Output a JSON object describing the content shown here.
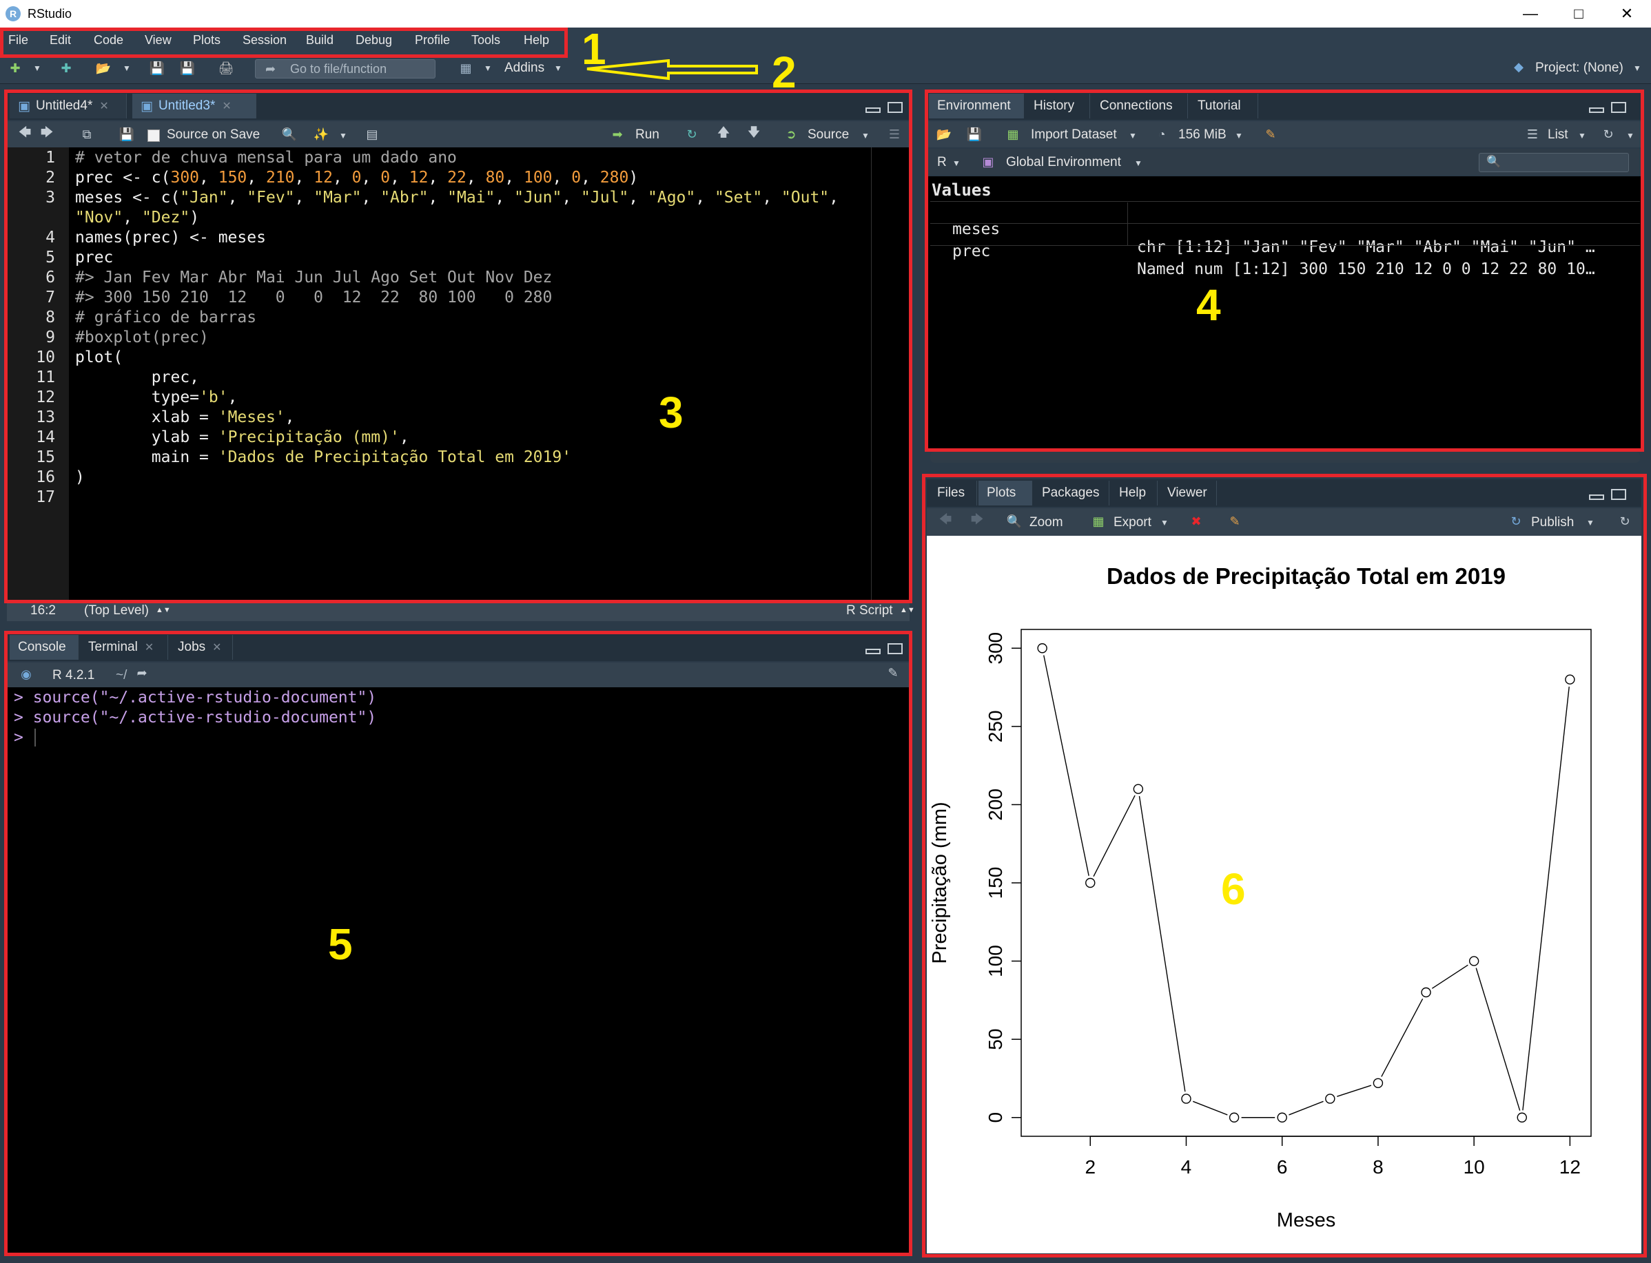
{
  "window": {
    "title": "RStudio"
  },
  "menu": [
    "File",
    "Edit",
    "Code",
    "View",
    "Plots",
    "Session",
    "Build",
    "Debug",
    "Profile",
    "Tools",
    "Help"
  ],
  "toolbar": {
    "goto_placeholder": "Go to file/function",
    "addins": "Addins",
    "project": "Project: (None)"
  },
  "source_pane": {
    "tabs": [
      "Untitled4*",
      "Untitled3*"
    ],
    "source_on_save": "Source on Save",
    "run": "Run",
    "source": "Source",
    "status_pos": "16:2",
    "status_scope": "(Top Level)",
    "status_type": "R Script"
  },
  "code_lines": [
    "# vetor de chuva mensal para um dado ano",
    "prec <- c(300, 150, 210, 12, 0, 0, 12, 22, 80, 100, 0, 280)",
    "meses <- c(\"Jan\", \"Fev\", \"Mar\", \"Abr\", \"Mai\", \"Jun\", \"Jul\", \"Ago\", \"Set\", \"Out\",",
    "\"Nov\", \"Dez\")",
    "names(prec) <- meses",
    "prec",
    "#> Jan Fev Mar Abr Mai Jun Jul Ago Set Out Nov Dez",
    "#> 300 150 210  12   0   0  12  22  80 100   0 280",
    "# gráfico de barras",
    "#boxplot(prec)",
    "plot(",
    "        prec,",
    "        type='b',",
    "        xlab = 'Meses',",
    "        ylab = 'Precipitação (mm)',",
    "        main = 'Dados de Precipitação Total em 2019'",
    ")",
    ""
  ],
  "line_numbers": [
    "1",
    "2",
    "3",
    "",
    "4",
    "5",
    "6",
    "7",
    "8",
    "9",
    "10",
    "11",
    "12",
    "13",
    "14",
    "15",
    "16",
    "17"
  ],
  "console_pane": {
    "tabs": [
      "Console",
      "Terminal",
      "Jobs"
    ],
    "r_version": "R 4.2.1",
    "wd": "~/",
    "lines": [
      "> source(\"~/.active-rstudio-document\")",
      "> source(\"~/.active-rstudio-document\")",
      "> "
    ]
  },
  "env_pane": {
    "tabs": [
      "Environment",
      "History",
      "Connections",
      "Tutorial"
    ],
    "import_dataset": "Import Dataset",
    "memory": "156 MiB",
    "list_view": "List",
    "lang": "R",
    "scope": "Global Environment",
    "section": "Values",
    "rows": [
      {
        "name": "meses",
        "value": "chr [1:12] \"Jan\" \"Fev\" \"Mar\" \"Abr\" \"Mai\" \"Jun\" …"
      },
      {
        "name": "prec",
        "value": "Named num [1:12] 300 150 210 12 0 0 12 22 80 10…"
      }
    ]
  },
  "files_pane": {
    "tabs": [
      "Files",
      "Plots",
      "Packages",
      "Help",
      "Viewer"
    ],
    "zoom": "Zoom",
    "export": "Export",
    "publish": "Publish"
  },
  "annotations": [
    "1",
    "2",
    "3",
    "4",
    "5",
    "6"
  ],
  "colors": {
    "annotation_red": "#e8262c",
    "annotation_yellow": "#ffec00",
    "accent": "#75aadb"
  },
  "chart_data": {
    "type": "line",
    "title": "Dados de Precipitação Total em 2019",
    "xlabel": "Meses",
    "ylabel": "Precipitação (mm)",
    "x": [
      1,
      2,
      3,
      4,
      5,
      6,
      7,
      8,
      9,
      10,
      11,
      12
    ],
    "values": [
      300,
      150,
      210,
      12,
      0,
      0,
      12,
      22,
      80,
      100,
      0,
      280
    ],
    "xticks": [
      2,
      4,
      6,
      8,
      10,
      12
    ],
    "yticks": [
      0,
      50,
      100,
      150,
      200,
      250,
      300
    ],
    "xlim": [
      0.56,
      12.44
    ],
    "ylim": [
      -12,
      312
    ],
    "markers": "open-circle",
    "grid": false
  }
}
